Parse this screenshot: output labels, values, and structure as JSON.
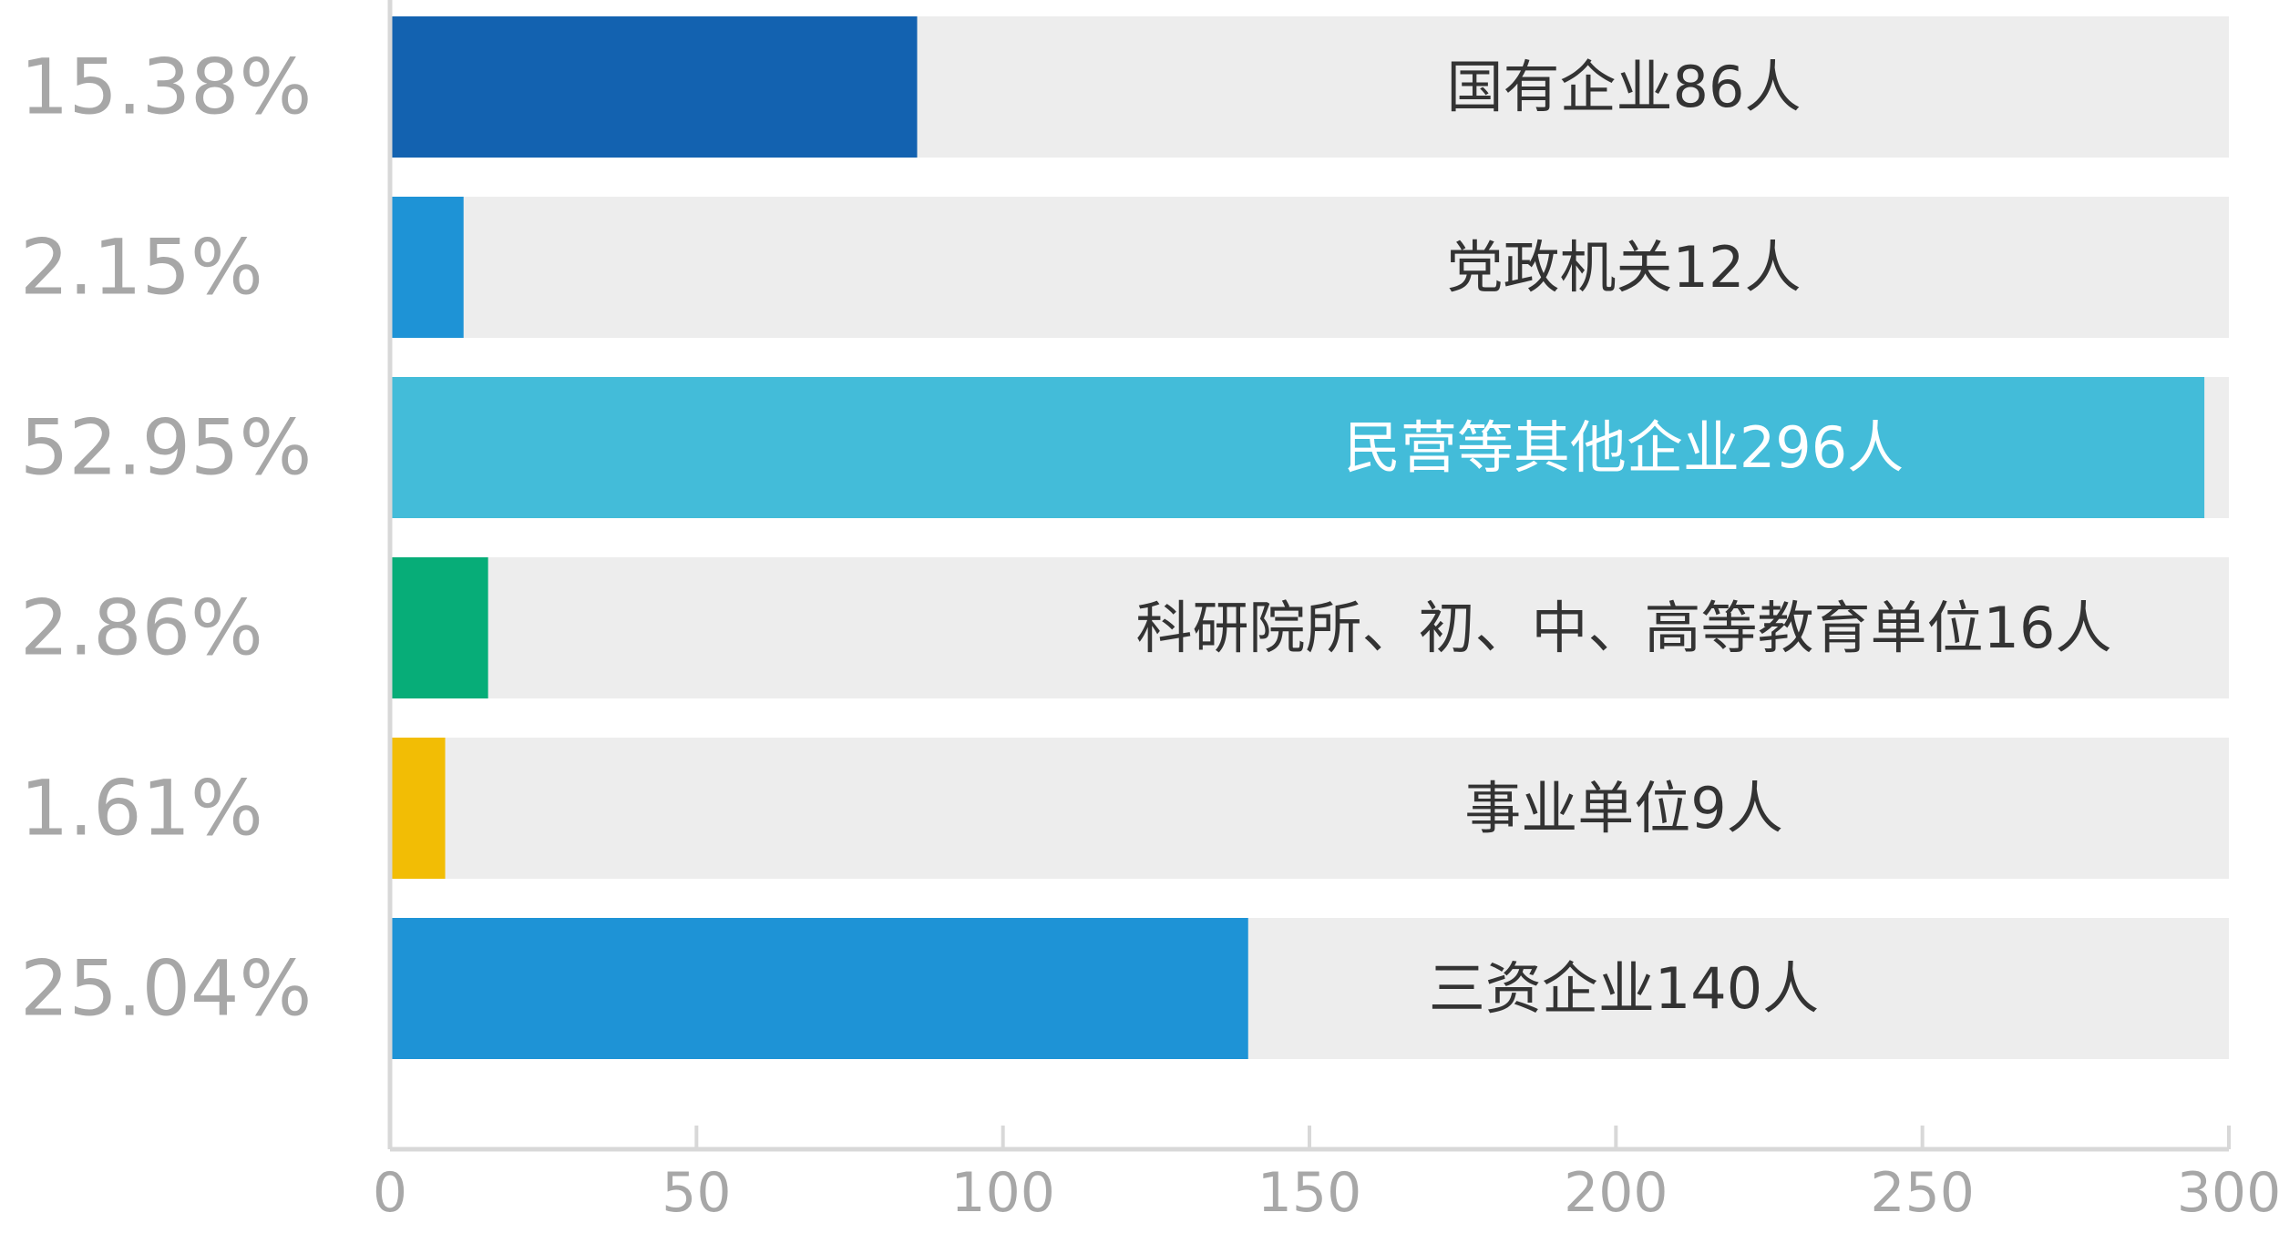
{
  "chart_data": {
    "type": "bar",
    "orientation": "horizontal",
    "categories": [
      "国有企业86人",
      "党政机关12人",
      "民营等其他企业296人",
      "科研院所、初、中、高等教育单位16人",
      "事业单位9人",
      "三资企业140人"
    ],
    "values": [
      86,
      12,
      296,
      16,
      9,
      140
    ],
    "percent_labels": [
      "15.38%",
      "2.15%",
      "52.95%",
      "2.86%",
      "1.61%",
      "25.04%"
    ],
    "bar_colors": [
      "#1362b0",
      "#1e93d6",
      "#43bcd9",
      "#07ad78",
      "#f2bd05",
      "#1e93d6"
    ],
    "label_colors": [
      "#333333",
      "#333333",
      "#ffffff",
      "#333333",
      "#333333",
      "#333333"
    ],
    "track_color": "#ededed",
    "xlim": [
      0,
      300
    ],
    "xticks": [
      0,
      50,
      100,
      150,
      200,
      250,
      300
    ],
    "grid": false,
    "legend": "none",
    "title": "",
    "xlabel": "",
    "ylabel": ""
  }
}
